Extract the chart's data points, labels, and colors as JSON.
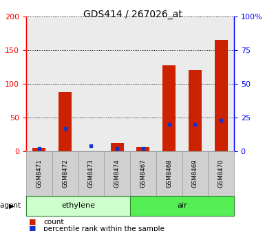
{
  "title": "GDS414 / 267026_at",
  "samples": [
    "GSM8471",
    "GSM8472",
    "GSM8473",
    "GSM8474",
    "GSM8467",
    "GSM8468",
    "GSM8469",
    "GSM8470"
  ],
  "counts": [
    5,
    88,
    0,
    12,
    6,
    128,
    120,
    165
  ],
  "percentiles": [
    2,
    17,
    4,
    2,
    2,
    20,
    20,
    23
  ],
  "groups": [
    {
      "label": "ethylene",
      "start": 0,
      "end": 4,
      "color": "#ccffcc"
    },
    {
      "label": "air",
      "start": 4,
      "end": 8,
      "color": "#55ee55"
    }
  ],
  "group_label": "agent",
  "left_yticks": [
    0,
    50,
    100,
    150,
    200
  ],
  "right_yticks": [
    0,
    25,
    50,
    75,
    100
  ],
  "right_yticklabels": [
    "0",
    "25",
    "50",
    "75",
    "100%"
  ],
  "ylim_left": [
    0,
    200
  ],
  "ylim_right": [
    0,
    100
  ],
  "bar_color": "#cc2200",
  "dot_color": "#1133cc",
  "bar_width": 0.5,
  "background_color": "#ffffff",
  "plot_bg_color": "#ebebeb",
  "legend_count_label": "count",
  "legend_percentile_label": "percentile rank within the sample"
}
